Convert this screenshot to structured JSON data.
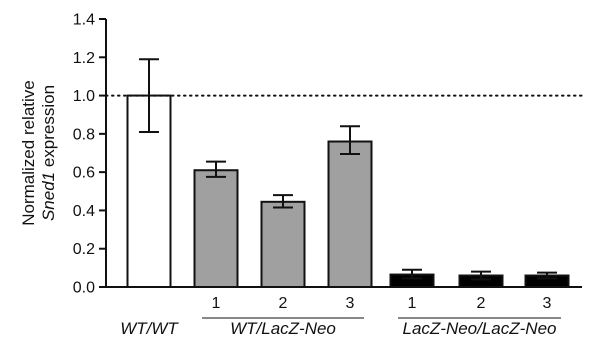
{
  "chart_data": {
    "type": "bar",
    "title": "",
    "xlabel": "",
    "ylabel_lines": [
      {
        "parts": [
          {
            "text": "Normalized relative",
            "italic": false
          }
        ]
      },
      {
        "parts": [
          {
            "text": "Sned1",
            "italic": true
          },
          {
            "text": " expression",
            "italic": false
          }
        ]
      }
    ],
    "ylim": [
      0,
      1.4
    ],
    "yticks": [
      "0.0",
      "0.2",
      "0.4",
      "0.6",
      "0.8",
      "1.0",
      "1.2",
      "1.4"
    ],
    "reference_line": 1.0,
    "grid": false,
    "legend": "none",
    "bars": [
      {
        "group": "WT/WT",
        "label": "",
        "value": 1.0,
        "error_low": 0.81,
        "error_high": 1.19,
        "color": "#ffffff"
      },
      {
        "group": "WT/LacZ-Neo",
        "label": "1",
        "value": 0.61,
        "error_low": 0.575,
        "error_high": 0.655,
        "color": "#a0a0a0"
      },
      {
        "group": "WT/LacZ-Neo",
        "label": "2",
        "value": 0.445,
        "error_low": 0.415,
        "error_high": 0.48,
        "color": "#a0a0a0"
      },
      {
        "group": "WT/LacZ-Neo",
        "label": "3",
        "value": 0.76,
        "error_low": 0.695,
        "error_high": 0.84,
        "color": "#a0a0a0"
      },
      {
        "group": "LacZ-Neo/LacZ-Neo",
        "label": "1",
        "value": 0.065,
        "error_low": 0.045,
        "error_high": 0.09,
        "color": "#000000"
      },
      {
        "group": "LacZ-Neo/LacZ-Neo",
        "label": "2",
        "value": 0.06,
        "error_low": 0.04,
        "error_high": 0.08,
        "color": "#000000"
      },
      {
        "group": "LacZ-Neo/LacZ-Neo",
        "label": "3",
        "value": 0.06,
        "error_low": 0.045,
        "error_high": 0.075,
        "color": "#000000"
      }
    ],
    "groups": [
      {
        "name": "WT/WT",
        "bars": [
          0
        ],
        "underline": false
      },
      {
        "name": "WT/LacZ-Neo",
        "bars": [
          1,
          2,
          3
        ],
        "underline": true
      },
      {
        "name": "LacZ-Neo/LacZ-Neo",
        "bars": [
          4,
          5,
          6
        ],
        "underline": true
      }
    ]
  }
}
